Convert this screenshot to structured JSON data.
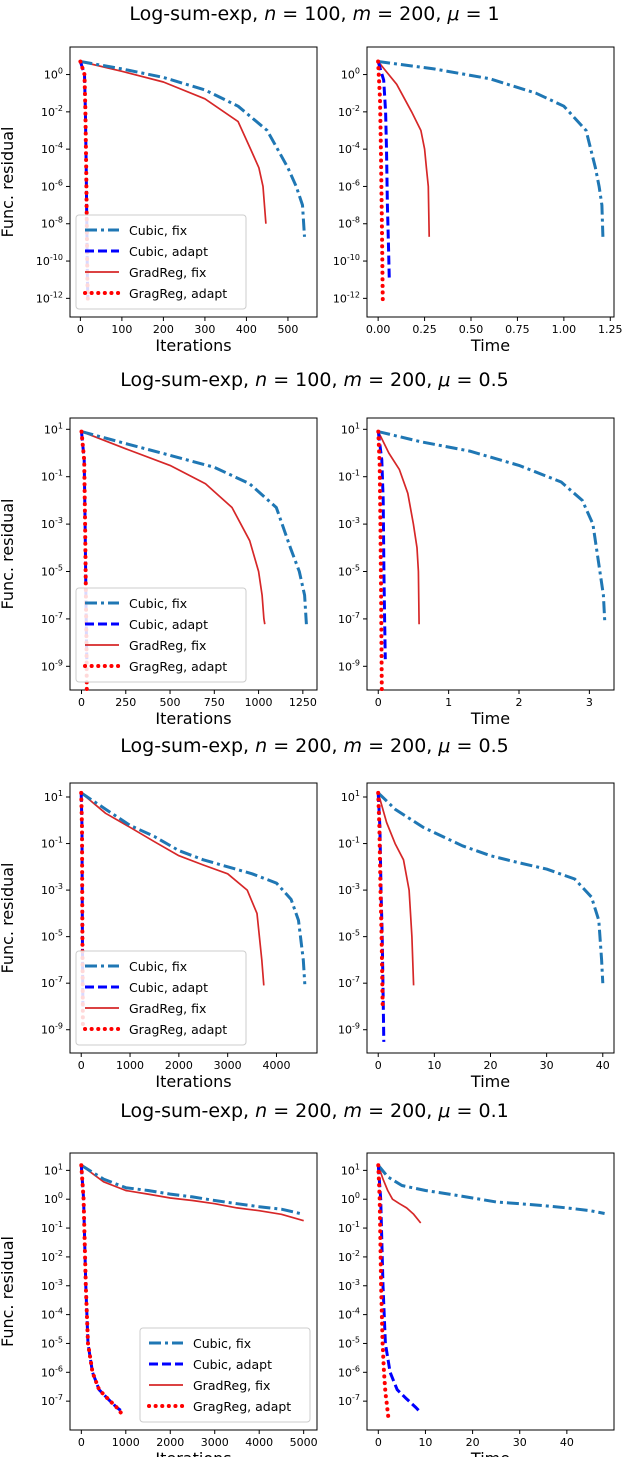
{
  "figure": {
    "rows": [
      {
        "title": "Log-sum-exp, n = 100, m = 200, μ = 1"
      },
      {
        "title": "Log-sum-exp, n = 100, m = 200, μ = 0.5"
      },
      {
        "title": "Log-sum-exp, n = 200, m = 200, μ = 0.5"
      },
      {
        "title": "Log-sum-exp, n = 200, m = 200, μ = 0.1"
      }
    ],
    "colors": {
      "Cubic, fix": "#1f77b4",
      "Cubic, adapt": "#0000ff",
      "GradReg, fix": "#d62728",
      "GragReg, adapt": "#ff0000"
    }
  },
  "chart_data": [
    {
      "type": "line",
      "title": "Log-sum-exp, n = 100, m = 200, μ = 1",
      "xlabel": "Iterations",
      "ylabel": "Func. residual",
      "yscale": "log",
      "xlim": [
        -25,
        570
      ],
      "ylim": [
        1e-13,
        30
      ],
      "xticks": [
        0,
        100,
        200,
        300,
        400,
        500
      ],
      "yticks": [
        1,
        0.01,
        0.0001,
        1e-06,
        1e-08,
        1e-10,
        1e-12
      ],
      "legend": [
        "Cubic, fix",
        "Cubic, adapt",
        "GradReg, fix",
        "GragReg, adapt"
      ],
      "legend_position": "lower-left",
      "series": [
        {
          "name": "Cubic, fix",
          "x": [
            0,
            100,
            200,
            300,
            380,
            450,
            500,
            520,
            535,
            540
          ],
          "y": [
            5,
            2,
            0.7,
            0.15,
            0.02,
            0.001,
            1e-05,
            1e-06,
            1e-07,
            2e-09
          ]
        },
        {
          "name": "Cubic, adapt",
          "x": [
            0,
            10,
            12,
            14,
            16,
            17,
            18
          ],
          "y": [
            5,
            1,
            0.01,
            1e-05,
            1e-09,
            1e-11,
            1e-12
          ]
        },
        {
          "name": "GradReg, fix",
          "x": [
            0,
            100,
            200,
            300,
            380,
            410,
            430,
            440,
            447
          ],
          "y": [
            5,
            1.5,
            0.4,
            0.05,
            0.003,
            0.0001,
            1e-05,
            1e-06,
            1e-08
          ]
        },
        {
          "name": "GragReg, adapt",
          "x": [
            0,
            10,
            12,
            14,
            16,
            17,
            18
          ],
          "y": [
            5,
            1,
            0.01,
            1e-05,
            1e-09,
            1e-11,
            5e-13
          ]
        }
      ]
    },
    {
      "type": "line",
      "title": "Log-sum-exp, n = 100, m = 200, μ = 1",
      "xlabel": "Time",
      "ylabel": "",
      "yscale": "log",
      "xlim": [
        -0.06,
        1.27
      ],
      "ylim": [
        1e-13,
        30
      ],
      "xticks": [
        0,
        0.25,
        0.5,
        0.75,
        1.0,
        1.25
      ],
      "yticks": [
        1,
        0.01,
        0.0001,
        1e-06,
        1e-08,
        1e-10,
        1e-12
      ],
      "series": [
        {
          "name": "Cubic, fix",
          "x": [
            0,
            0.3,
            0.6,
            0.85,
            1.0,
            1.12,
            1.17,
            1.19,
            1.205,
            1.21
          ],
          "y": [
            5,
            2,
            0.6,
            0.1,
            0.02,
            0.001,
            1e-05,
            1e-06,
            1e-07,
            2e-09
          ]
        },
        {
          "name": "Cubic, adapt",
          "x": [
            0,
            0.03,
            0.04,
            0.045,
            0.05,
            0.055,
            0.06
          ],
          "y": [
            5,
            0.5,
            0.01,
            0.0001,
            1e-07,
            1e-09,
            1e-11
          ]
        },
        {
          "name": "GradReg, fix",
          "x": [
            0,
            0.1,
            0.18,
            0.23,
            0.25,
            0.26,
            0.27,
            0.275
          ],
          "y": [
            5,
            0.3,
            0.01,
            0.001,
            0.0001,
            1e-05,
            1e-06,
            2e-09
          ]
        },
        {
          "name": "GragReg, adapt",
          "x": [
            0,
            0.01,
            0.015,
            0.02,
            0.025
          ],
          "y": [
            5,
            0.05,
            0.0001,
            1e-08,
            5e-13
          ]
        }
      ]
    },
    {
      "type": "line",
      "title": "Log-sum-exp, n = 100, m = 200, μ = 0.5",
      "xlabel": "Iterations",
      "ylabel": "Func. residual",
      "yscale": "log",
      "xlim": [
        -65,
        1330
      ],
      "ylim": [
        1e-10,
        30
      ],
      "xticks": [
        0,
        250,
        500,
        750,
        1000,
        1250
      ],
      "yticks": [
        10,
        0.1,
        0.001,
        1e-05,
        1e-07,
        1e-09
      ],
      "legend": [
        "Cubic, fix",
        "Cubic, adapt",
        "GradReg, fix",
        "GragReg, adapt"
      ],
      "legend_position": "lower-left",
      "series": [
        {
          "name": "Cubic, fix",
          "x": [
            0,
            250,
            500,
            750,
            950,
            1100,
            1180,
            1230,
            1260,
            1270
          ],
          "y": [
            8,
            2.5,
            0.8,
            0.25,
            0.05,
            0.005,
            0.0001,
            1e-05,
            1e-06,
            6e-08
          ]
        },
        {
          "name": "Cubic, adapt",
          "x": [
            0,
            15,
            20,
            25,
            28,
            30
          ],
          "y": [
            8,
            0.5,
            0.001,
            1e-06,
            1e-08,
            2e-09
          ]
        },
        {
          "name": "GradReg, fix",
          "x": [
            0,
            250,
            500,
            700,
            850,
            950,
            1000,
            1020,
            1030,
            1035
          ],
          "y": [
            8,
            1.5,
            0.3,
            0.05,
            0.005,
            0.0002,
            1e-05,
            1e-06,
            1e-07,
            6e-08
          ]
        },
        {
          "name": "GragReg, adapt",
          "x": [
            0,
            15,
            20,
            25,
            28,
            30
          ],
          "y": [
            8,
            0.5,
            0.001,
            1e-06,
            1e-08,
            1e-10
          ]
        }
      ]
    },
    {
      "type": "line",
      "title": "Log-sum-exp, n = 100, m = 200, μ = 0.5",
      "xlabel": "Time",
      "ylabel": "",
      "yscale": "log",
      "xlim": [
        -0.16,
        3.35
      ],
      "ylim": [
        1e-10,
        30
      ],
      "xticks": [
        0,
        1,
        2,
        3
      ],
      "yticks": [
        10,
        0.1,
        0.001,
        1e-05,
        1e-07,
        1e-09
      ],
      "series": [
        {
          "name": "Cubic, fix",
          "x": [
            0,
            0.6,
            1.3,
            2.0,
            2.6,
            2.9,
            3.05,
            3.15,
            3.2,
            3.22
          ],
          "y": [
            8,
            3,
            1.2,
            0.3,
            0.06,
            0.01,
            0.001,
            1e-05,
            1e-06,
            6e-08
          ]
        },
        {
          "name": "Cubic, adapt",
          "x": [
            0,
            0.05,
            0.07,
            0.08,
            0.09,
            0.1
          ],
          "y": [
            8,
            0.5,
            0.01,
            1e-05,
            1e-07,
            2e-09
          ]
        },
        {
          "name": "GradReg, fix",
          "x": [
            0,
            0.15,
            0.3,
            0.42,
            0.5,
            0.55,
            0.57,
            0.58
          ],
          "y": [
            8,
            1,
            0.2,
            0.02,
            0.001,
            0.0001,
            1e-05,
            6e-08
          ]
        },
        {
          "name": "GragReg, adapt",
          "x": [
            0,
            0.02,
            0.03,
            0.04,
            0.05
          ],
          "y": [
            8,
            0.3,
            0.001,
            1e-06,
            1e-10
          ]
        }
      ]
    },
    {
      "type": "line",
      "title": "Log-sum-exp, n = 200, m = 200, μ = 0.5",
      "xlabel": "Iterations",
      "ylabel": "Func. residual",
      "yscale": "log",
      "xlim": [
        -230,
        4830
      ],
      "ylim": [
        1e-10,
        40
      ],
      "xticks": [
        0,
        1000,
        2000,
        3000,
        4000
      ],
      "yticks": [
        10,
        0.1,
        0.001,
        1e-05,
        1e-07,
        1e-09
      ],
      "legend": [
        "Cubic, fix",
        "Cubic, adapt",
        "GradReg, fix",
        "GragReg, adapt"
      ],
      "legend_position": "lower-left",
      "series": [
        {
          "name": "Cubic, fix",
          "x": [
            0,
            500,
            1000,
            1500,
            2000,
            2500,
            3000,
            3500,
            4000,
            4300,
            4450,
            4550,
            4580
          ],
          "y": [
            15,
            3,
            0.6,
            0.2,
            0.05,
            0.02,
            0.01,
            0.005,
            0.002,
            0.0004,
            5e-05,
            1e-06,
            9e-08
          ]
        },
        {
          "name": "Cubic, adapt",
          "x": [
            0,
            15,
            20,
            25,
            30,
            35
          ],
          "y": [
            15,
            0.5,
            0.001,
            1e-05,
            1e-07,
            1e-08
          ]
        },
        {
          "name": "GradReg, fix",
          "x": [
            0,
            500,
            1000,
            1500,
            2000,
            2500,
            3000,
            3400,
            3600,
            3700,
            3740
          ],
          "y": [
            15,
            2,
            0.5,
            0.12,
            0.03,
            0.012,
            0.005,
            0.001,
            0.0001,
            1e-06,
            8e-08
          ]
        },
        {
          "name": "GragReg, adapt",
          "x": [
            0,
            15,
            20,
            25,
            30,
            35
          ],
          "y": [
            15,
            0.5,
            0.001,
            1e-05,
            1e-07,
            1e-09
          ]
        }
      ]
    },
    {
      "type": "line",
      "title": "Log-sum-exp, n = 200, m = 200, μ = 0.5",
      "xlabel": "Time",
      "ylabel": "",
      "yscale": "log",
      "xlim": [
        -2,
        42
      ],
      "ylim": [
        1e-10,
        40
      ],
      "xticks": [
        0,
        10,
        20,
        30,
        40
      ],
      "yticks": [
        10,
        0.1,
        0.001,
        1e-05,
        1e-07,
        1e-09
      ],
      "series": [
        {
          "name": "Cubic, fix",
          "x": [
            0,
            3,
            8,
            15,
            20,
            25,
            30,
            35,
            38,
            39.3,
            39.8,
            40
          ],
          "y": [
            15,
            3,
            0.5,
            0.08,
            0.03,
            0.015,
            0.008,
            0.003,
            0.0005,
            5e-05,
            1e-06,
            1e-07
          ]
        },
        {
          "name": "Cubic, adapt",
          "x": [
            0,
            0.3,
            0.5,
            0.7,
            0.9,
            1.0
          ],
          "y": [
            15,
            0.5,
            0.001,
            1e-05,
            1e-08,
            3e-10
          ]
        },
        {
          "name": "GradReg, fix",
          "x": [
            0,
            1.5,
            3,
            4.5,
            5.5,
            6.0,
            6.3
          ],
          "y": [
            15,
            0.8,
            0.1,
            0.02,
            0.001,
            1e-05,
            8e-08
          ]
        },
        {
          "name": "GragReg, adapt",
          "x": [
            0,
            0.2,
            0.4,
            0.6,
            0.8
          ],
          "y": [
            15,
            0.5,
            0.001,
            1e-05,
            1e-08
          ]
        }
      ]
    },
    {
      "type": "line",
      "title": "Log-sum-exp, n = 200, m = 200, μ = 0.1",
      "xlabel": "Iterations",
      "ylabel": "Func. residual",
      "yscale": "log",
      "xlim": [
        -255,
        5300
      ],
      "ylim": [
        1e-08,
        40
      ],
      "xticks": [
        0,
        1000,
        2000,
        3000,
        4000,
        5000
      ],
      "yticks": [
        10,
        1,
        0.1,
        0.01,
        0.001,
        0.0001,
        1e-05,
        1e-06,
        1e-07
      ],
      "legend": [
        "Cubic, fix",
        "Cubic, adapt",
        "GradReg, fix",
        "GragReg, adapt"
      ],
      "legend_position": "lower-right",
      "series": [
        {
          "name": "Cubic, fix",
          "x": [
            0,
            500,
            1000,
            1500,
            2000,
            2500,
            3000,
            3500,
            4000,
            4500,
            5000
          ],
          "y": [
            15,
            5,
            2.5,
            2,
            1.5,
            1.2,
            0.9,
            0.7,
            0.55,
            0.45,
            0.3
          ]
        },
        {
          "name": "Cubic, adapt",
          "x": [
            0,
            50,
            100,
            150,
            250,
            400,
            600,
            800,
            950
          ],
          "y": [
            15,
            1,
            0.001,
            1e-05,
            1e-06,
            2.5e-07,
            1.2e-07,
            6e-08,
            4e-08
          ]
        },
        {
          "name": "GradReg, fix",
          "x": [
            0,
            500,
            1000,
            1500,
            2000,
            2500,
            3000,
            3500,
            4000,
            4500,
            5000
          ],
          "y": [
            15,
            4,
            2,
            1.5,
            1.1,
            0.9,
            0.7,
            0.5,
            0.4,
            0.3,
            0.18
          ]
        },
        {
          "name": "GragReg, adapt",
          "x": [
            0,
            50,
            100,
            150,
            250,
            400,
            600,
            800,
            950
          ],
          "y": [
            15,
            1,
            0.001,
            1e-05,
            1e-06,
            2.5e-07,
            1.2e-07,
            6e-08,
            3e-08
          ]
        }
      ]
    },
    {
      "type": "line",
      "title": "Log-sum-exp, n = 200, m = 200, μ = 0.1",
      "xlabel": "Time",
      "ylabel": "",
      "yscale": "log",
      "xlim": [
        -2.4,
        50
      ],
      "ylim": [
        1e-08,
        40
      ],
      "xticks": [
        0,
        10,
        20,
        30,
        40
      ],
      "yticks": [
        10,
        1,
        0.1,
        0.01,
        0.001,
        0.0001,
        1e-05,
        1e-06,
        1e-07
      ],
      "series": [
        {
          "name": "Cubic, fix",
          "x": [
            0,
            2,
            5,
            10,
            15,
            20,
            25,
            30,
            35,
            40,
            45,
            48
          ],
          "y": [
            15,
            6,
            3,
            2,
            1.5,
            1.1,
            0.8,
            0.7,
            0.6,
            0.5,
            0.4,
            0.32
          ]
        },
        {
          "name": "Cubic, adapt",
          "x": [
            0,
            0.5,
            1,
            1.5,
            2.5,
            4,
            6,
            8,
            9
          ],
          "y": [
            15,
            1,
            0.001,
            1e-05,
            1e-06,
            2.5e-07,
            1.2e-07,
            6e-08,
            4e-08
          ]
        },
        {
          "name": "GradReg, fix",
          "x": [
            0,
            1,
            2,
            3,
            4.5,
            6,
            7.5,
            9
          ],
          "y": [
            15,
            5,
            2,
            1,
            0.7,
            0.5,
            0.3,
            0.15
          ]
        },
        {
          "name": "GragReg, adapt",
          "x": [
            0,
            0.3,
            0.6,
            0.9,
            1.2,
            1.5,
            1.8,
            2.1
          ],
          "y": [
            15,
            1,
            0.001,
            1e-05,
            1e-06,
            2e-07,
            8e-08,
            3e-08
          ]
        }
      ]
    }
  ]
}
